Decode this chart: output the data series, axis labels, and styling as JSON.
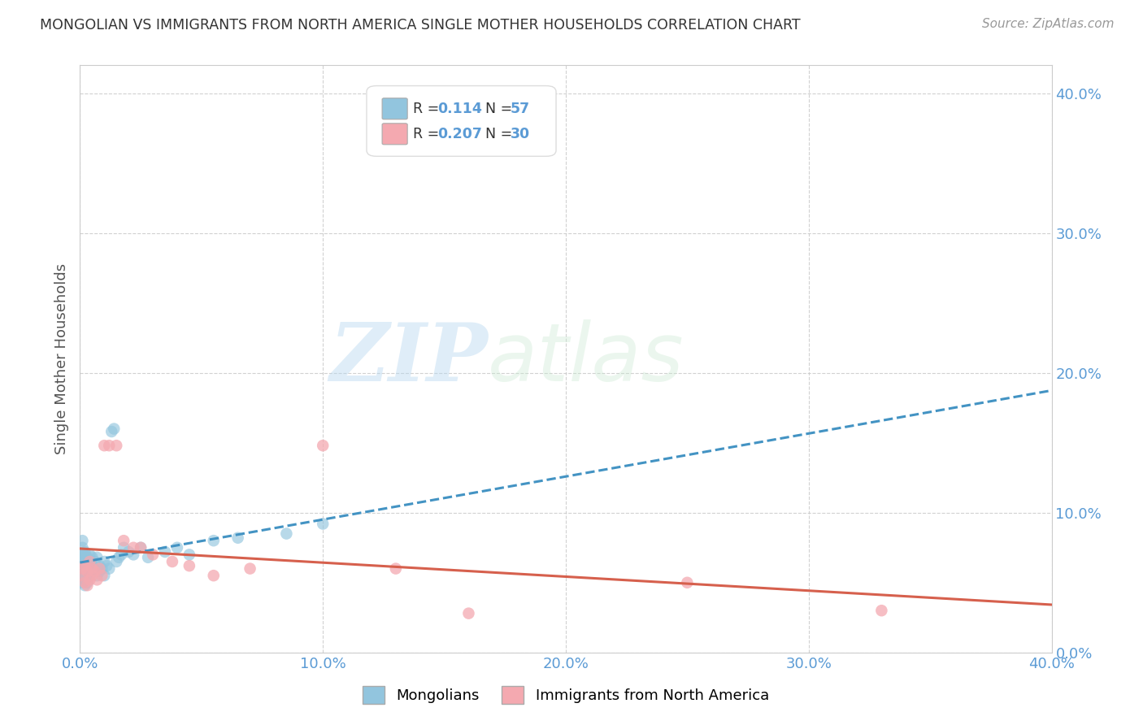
{
  "title": "MONGOLIAN VS IMMIGRANTS FROM NORTH AMERICA SINGLE MOTHER HOUSEHOLDS CORRELATION CHART",
  "source": "Source: ZipAtlas.com",
  "ylabel": "Single Mother Households",
  "legend_bottom": [
    "Mongolians",
    "Immigrants from North America"
  ],
  "r_mongolian": "0.114",
  "n_mongolian": "57",
  "r_immigrant": "0.207",
  "n_immigrant": "30",
  "xlim": [
    0.0,
    0.4
  ],
  "ylim": [
    0.0,
    0.42
  ],
  "yticks": [
    0.0,
    0.1,
    0.2,
    0.3,
    0.4
  ],
  "xticks": [
    0.0,
    0.1,
    0.2,
    0.3,
    0.4
  ],
  "mongolian_color": "#92c5de",
  "immigrant_color": "#f4a9b0",
  "mongolian_line_color": "#4393c3",
  "immigrant_line_color": "#d6604d",
  "watermark_zip": "ZIP",
  "watermark_atlas": "atlas",
  "background_color": "#ffffff",
  "grid_color": "#cccccc",
  "mongolian_x": [
    0.001,
    0.001,
    0.001,
    0.001,
    0.001,
    0.001,
    0.001,
    0.002,
    0.002,
    0.002,
    0.002,
    0.002,
    0.002,
    0.002,
    0.002,
    0.002,
    0.003,
    0.003,
    0.003,
    0.003,
    0.003,
    0.003,
    0.004,
    0.004,
    0.004,
    0.004,
    0.005,
    0.005,
    0.005,
    0.006,
    0.006,
    0.007,
    0.007,
    0.008,
    0.008,
    0.009,
    0.01,
    0.01,
    0.011,
    0.012,
    0.013,
    0.014,
    0.015,
    0.016,
    0.017,
    0.018,
    0.02,
    0.022,
    0.025,
    0.028,
    0.035,
    0.04,
    0.045,
    0.055,
    0.065,
    0.085,
    0.1
  ],
  "mongolian_y": [
    0.06,
    0.065,
    0.07,
    0.075,
    0.055,
    0.08,
    0.05,
    0.058,
    0.062,
    0.068,
    0.055,
    0.07,
    0.052,
    0.065,
    0.048,
    0.072,
    0.058,
    0.062,
    0.055,
    0.068,
    0.05,
    0.065,
    0.06,
    0.065,
    0.055,
    0.07,
    0.058,
    0.062,
    0.068,
    0.06,
    0.065,
    0.055,
    0.068,
    0.058,
    0.062,
    0.06,
    0.055,
    0.065,
    0.062,
    0.06,
    0.158,
    0.16,
    0.065,
    0.068,
    0.07,
    0.075,
    0.072,
    0.07,
    0.075,
    0.068,
    0.072,
    0.075,
    0.07,
    0.08,
    0.082,
    0.085,
    0.092
  ],
  "immigrant_x": [
    0.001,
    0.001,
    0.002,
    0.002,
    0.003,
    0.003,
    0.004,
    0.004,
    0.005,
    0.005,
    0.006,
    0.007,
    0.008,
    0.009,
    0.01,
    0.012,
    0.015,
    0.018,
    0.022,
    0.025,
    0.03,
    0.038,
    0.045,
    0.055,
    0.07,
    0.1,
    0.13,
    0.16,
    0.25,
    0.33
  ],
  "immigrant_y": [
    0.06,
    0.055,
    0.062,
    0.05,
    0.058,
    0.048,
    0.065,
    0.052,
    0.06,
    0.055,
    0.058,
    0.052,
    0.06,
    0.055,
    0.148,
    0.148,
    0.148,
    0.08,
    0.075,
    0.075,
    0.07,
    0.065,
    0.062,
    0.055,
    0.06,
    0.148,
    0.06,
    0.028,
    0.05,
    0.03
  ]
}
